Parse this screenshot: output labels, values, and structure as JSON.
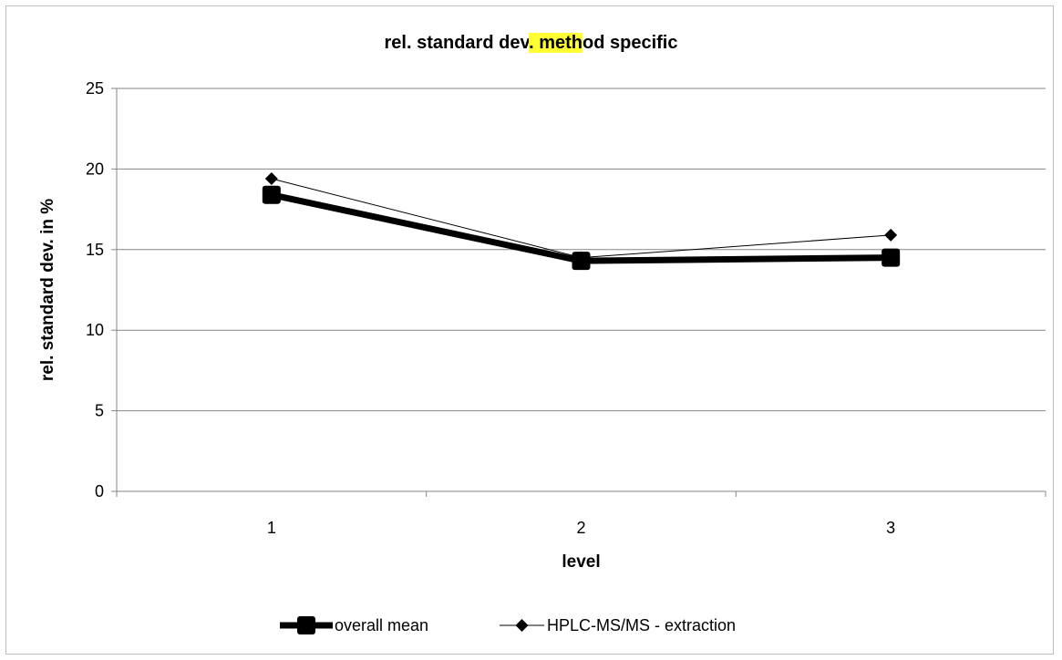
{
  "chart_data": {
    "type": "line",
    "title_parts": [
      "rel. standard dev",
      ". meth",
      "od specific"
    ],
    "title_highlight_index": 1,
    "highlight_color": "#ffff33",
    "xlabel": "level",
    "ylabel": "rel. standard dev. in %",
    "categories": [
      "1",
      "2",
      "3"
    ],
    "ylim": [
      0,
      25
    ],
    "yticks": [
      0,
      5,
      10,
      15,
      20,
      25
    ],
    "grid": true,
    "legend_position": "bottom",
    "series": [
      {
        "name": "overall mean",
        "values": [
          18.4,
          14.3,
          14.5
        ],
        "color": "#000000",
        "marker": "square",
        "style": "thick"
      },
      {
        "name": "HPLC-MS/MS - extraction",
        "values": [
          19.4,
          14.5,
          15.9
        ],
        "color": "#000000",
        "marker": "diamond",
        "style": "thin"
      }
    ]
  }
}
